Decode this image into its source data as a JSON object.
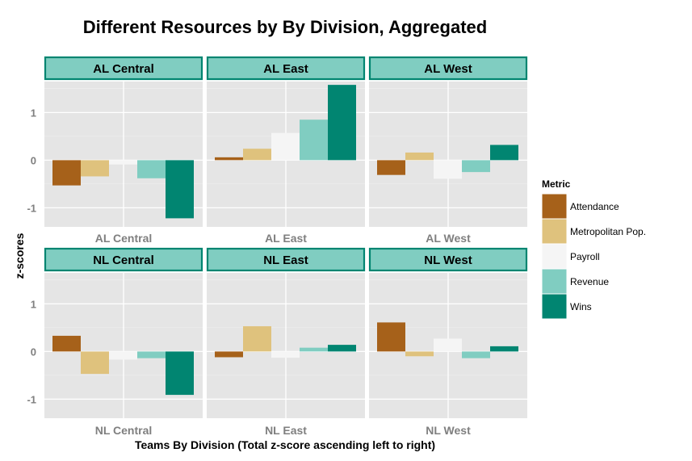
{
  "chart_data": {
    "type": "bar",
    "title": "Different Resources by By Division, Aggregated",
    "xlabel": "Teams By Division (Total z-score ascending left to right)",
    "ylabel": "z-scores",
    "ylim": [
      -1.4,
      1.65
    ],
    "yticks": [
      -1,
      0,
      1
    ],
    "grid": true,
    "legend": {
      "title": "Metric",
      "placement": "right"
    },
    "metrics": [
      "Attendance",
      "Metropolitan Pop.",
      "Payroll",
      "Revenue",
      "Wins"
    ],
    "colors": {
      "Attendance": "#a6611a",
      "Metropolitan Pop.": "#dfc27d",
      "Payroll": "#f5f5f5",
      "Revenue": "#80cdc1",
      "Wins": "#018571",
      "strip_fill": "#80cdc1",
      "strip_border": "#018571",
      "panel_bg": "#e5e5e5"
    },
    "panels": [
      {
        "strip": "AL Central",
        "category": "AL Central",
        "values": [
          -0.53,
          -0.34,
          -0.09,
          -0.38,
          -1.22
        ]
      },
      {
        "strip": "AL East",
        "category": "AL East",
        "values": [
          0.06,
          0.24,
          0.57,
          0.85,
          1.58
        ]
      },
      {
        "strip": "AL West",
        "category": "AL West",
        "values": [
          -0.31,
          0.16,
          -0.39,
          -0.25,
          0.32
        ]
      },
      {
        "strip": "NL Central",
        "category": "NL Central",
        "values": [
          0.33,
          -0.47,
          -0.17,
          -0.14,
          -0.91
        ]
      },
      {
        "strip": "NL East",
        "category": "NL East",
        "values": [
          -0.12,
          0.53,
          -0.13,
          0.08,
          0.14
        ]
      },
      {
        "strip": "NL West",
        "category": "NL West",
        "values": [
          0.61,
          -0.1,
          0.27,
          -0.14,
          0.11
        ]
      }
    ]
  }
}
